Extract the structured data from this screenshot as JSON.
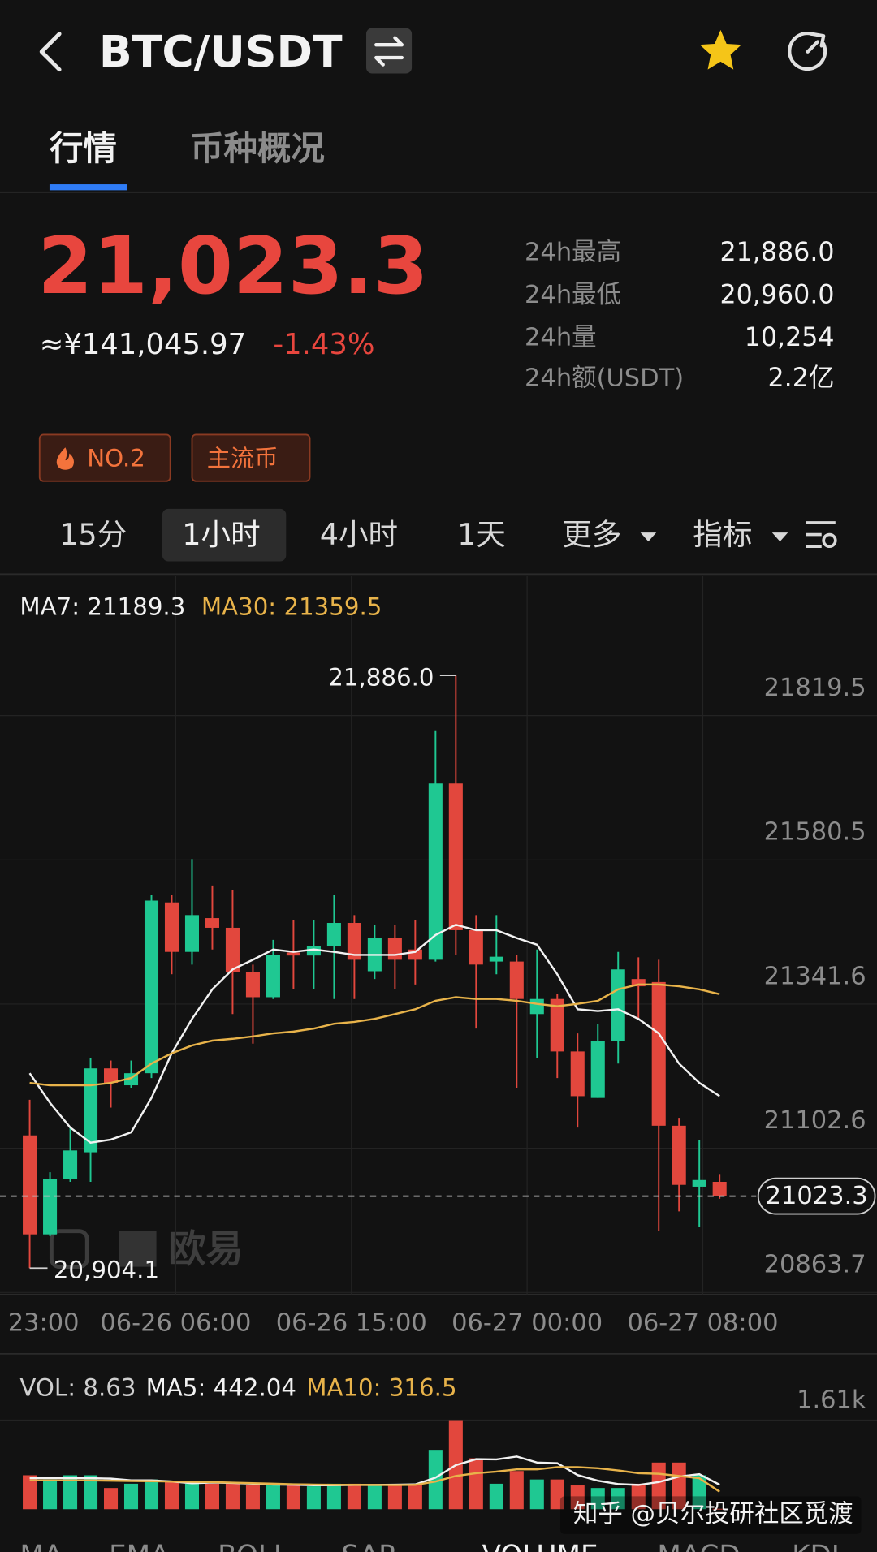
{
  "header": {
    "title": "BTC/USDT"
  },
  "tabs": [
    "行情",
    "币种概况"
  ],
  "price": {
    "last": "21,023.3",
    "cny": "≈¥141,045.97",
    "change": "-1.43%"
  },
  "stats": [
    {
      "label": "24h最高",
      "value": "21,886.0"
    },
    {
      "label": "24h最低",
      "value": "20,960.0"
    },
    {
      "label": "24h量",
      "value": "10,254"
    },
    {
      "label": "24h额(USDT)",
      "value": "2.2亿"
    }
  ],
  "tags": [
    "NO.2",
    "主流币"
  ],
  "intervals": [
    "15分",
    "1小时",
    "4小时",
    "1天",
    "更多",
    "指标"
  ],
  "chart_data": [
    {
      "type": "candlestick",
      "up_color": "#1fc892",
      "down_color": "#e2473d",
      "open": [
        21124,
        20960,
        21052,
        21096,
        21235,
        21207,
        21227,
        21510,
        21428,
        21484,
        21468,
        21394,
        21353,
        21427,
        21422,
        21437,
        21476,
        21396,
        21451,
        21432,
        21415,
        21707,
        21464,
        21412,
        21412,
        21325,
        21350,
        21263,
        21186,
        21281,
        21383,
        21378,
        21140,
        21039,
        21047
      ],
      "high": [
        21183,
        21063,
        21137,
        21252,
        21248,
        21248,
        21522,
        21522,
        21582,
        21538,
        21530,
        21407,
        21448,
        21481,
        21481,
        21522,
        21489,
        21473,
        21473,
        21481,
        21795,
        21886.0,
        21489,
        21489,
        21423,
        21432,
        21358,
        21293,
        21309,
        21428,
        21419,
        21415,
        21153,
        21117,
        21060
      ],
      "low": [
        20904.1,
        20957,
        21047,
        21047,
        21170,
        21203,
        21219,
        21391,
        21407,
        21432,
        21325,
        21276,
        21350,
        21366,
        21366,
        21350,
        21350,
        21383,
        21366,
        21374,
        21412,
        21423,
        21301,
        21391,
        21203,
        21252,
        21219,
        21137,
        21186,
        21243,
        21317,
        20965,
        20998,
        20973,
        21019
      ],
      "close": [
        20960,
        21052,
        21099,
        21235,
        21211,
        21227,
        21513,
        21428,
        21489,
        21468,
        21394,
        21353,
        21423,
        21422,
        21437,
        21476,
        21415,
        21451,
        21415,
        21415,
        21707,
        21464,
        21407,
        21420,
        21350,
        21350,
        21263,
        21189,
        21281,
        21399,
        21371,
        21140,
        21042,
        21050,
        21023.3
      ],
      "ma_series": [
        {
          "label": "MA7: 21189.3",
          "color": "#f2f2f2",
          "values": [
            21227,
            21178,
            21137,
            21112,
            21117,
            21129,
            21186,
            21260,
            21317,
            21366,
            21399,
            21415,
            21432,
            21428,
            21432,
            21428,
            21423,
            21423,
            21423,
            21428,
            21456,
            21473,
            21464,
            21464,
            21451,
            21440,
            21391,
            21333,
            21330,
            21333,
            21317,
            21293,
            21243,
            21211,
            21189
          ]
        },
        {
          "label": "MA30: 21359.5",
          "color": "#e8b34a",
          "values": [
            21211,
            21207,
            21207,
            21207,
            21211,
            21219,
            21243,
            21260,
            21273,
            21281,
            21284,
            21288,
            21293,
            21296,
            21301,
            21309,
            21312,
            21317,
            21325,
            21333,
            21347,
            21353,
            21350,
            21350,
            21347,
            21342,
            21338,
            21342,
            21347,
            21366,
            21374,
            21374,
            21371,
            21366,
            21358
          ]
        }
      ],
      "high_label": "21,886.0",
      "low_label": "20,904.1",
      "last_price": 21023.3,
      "ylim": [
        20863.7,
        21955.5
      ],
      "yticks": [
        21819.5,
        21580.5,
        21341.6,
        21102.6,
        20863.7
      ],
      "xticks": [
        "23:00",
        "06-26 06:00",
        "06-26 15:00",
        "06-27 00:00",
        "06-27 08:00"
      ],
      "grid": true
    },
    {
      "type": "bar",
      "volume_label": "VOL: 8.63",
      "values": [
        613,
        537,
        613,
        613,
        383,
        460,
        537,
        491,
        460,
        460,
        460,
        429,
        429,
        429,
        414,
        460,
        460,
        429,
        429,
        460,
        1073,
        1610,
        920,
        460,
        690,
        537,
        537,
        429,
        383,
        383,
        460,
        843,
        843,
        613,
        8.63
      ],
      "ma_series": [
        {
          "label": "MA5: 442.04",
          "color": "#f2f2f2",
          "values": [
            560,
            560,
            560,
            560,
            552,
            521,
            521,
            501,
            470,
            482,
            474,
            462,
            446,
            441,
            432,
            432,
            438,
            438,
            442,
            448,
            570,
            796,
            904,
            900,
            952,
            843,
            831,
            617,
            515,
            454,
            438,
            490,
            590,
            632,
            442.04
          ]
        },
        {
          "label": "MA10: 316.5",
          "color": "#e8b34a",
          "values": [
            520,
            520,
            520,
            520,
            515,
            510,
            505,
            500,
            495,
            490,
            480,
            470,
            460,
            450,
            445,
            440,
            440,
            438,
            436,
            440,
            500,
            600,
            650,
            680,
            720,
            720,
            760,
            760,
            740,
            700,
            650,
            640,
            600,
            560,
            316.5
          ]
        }
      ],
      "ylim": [
        0,
        1610
      ],
      "yticks": [
        {
          "value": 1610,
          "label": "1.61k"
        }
      ]
    }
  ],
  "watermark": {
    "brand": "欧易",
    "credit": "知乎 @贝尔投研社区觅渡"
  },
  "indicator_tabs": [
    "MA",
    "EMA",
    "BOLL",
    "SAR",
    "VOLUME",
    "MACD",
    "KDJ"
  ]
}
